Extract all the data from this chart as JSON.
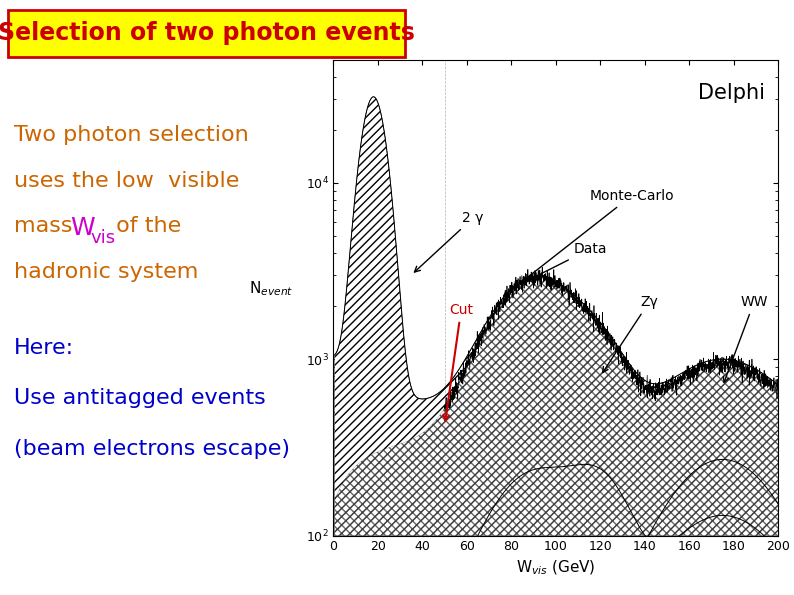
{
  "title": "Selection of two photon events",
  "title_color": "#cc0000",
  "title_bg": "#ffff00",
  "title_border": "#cc0000",
  "bg_color": "#ffffff",
  "left_text1": "Two photon selection",
  "left_text2": "uses the low  visible",
  "left_text3_prefix": "mass ",
  "left_text3_wvis": "W",
  "left_text3_wvis_sub": "vis",
  "left_text3_suffix": " of the",
  "left_text4": "hadronic system",
  "left_text_color": "#cc6600",
  "wvis_color": "#cc00cc",
  "here_text": "Here:",
  "here_color": "#0000cc",
  "antitagged_text": "Use antitagged events",
  "antitagged_color": "#0000cc",
  "beam_text": "(beam electrons escape)",
  "beam_color": "#0000cc",
  "delphi_label": "Delphi",
  "monte_carlo_label": "Monte-Carlo",
  "data_label": "Data",
  "zgamma_label": "Zγ",
  "ww_label": "WW",
  "twogamma_label": "2 γ",
  "cut_label": "Cut",
  "cut_color": "#cc0000",
  "xlabel": "W$_{vis}$ (GeV)",
  "ylabel": "N$_{event}$",
  "xmin": 0,
  "xmax": 200,
  "ymin": 100,
  "ymax": 50000,
  "font_size_title": 17,
  "font_size_left": 16,
  "font_size_labels": 11
}
